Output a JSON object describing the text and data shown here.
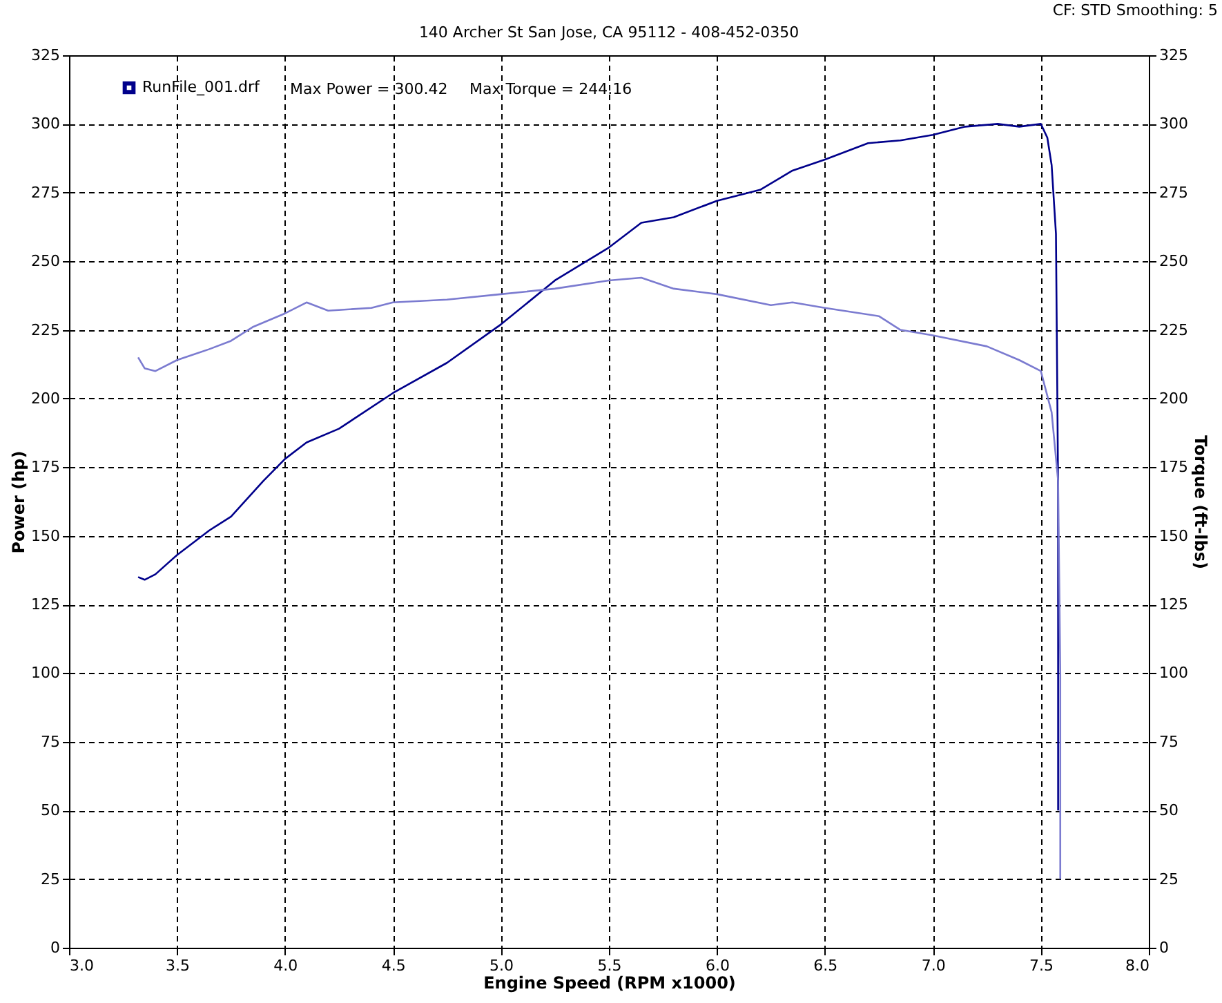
{
  "chart_data": {
    "type": "line",
    "title": "140 Archer St San Jose, CA 95112 - 408-452-0350",
    "xlabel": "Engine Speed (RPM x1000)",
    "ylabel": "Power (hp)",
    "y2label": "Torque (ft-lbs)",
    "annotations": [
      "Max Power = 300.42",
      "Max Torque = 244.16",
      "CF: STD  Smoothing: 5"
    ],
    "xlim": [
      3.0,
      8.0
    ],
    "xticks": [
      {
        "value": 3,
        "label": "3.0"
      },
      3.5,
      {
        "value": 4,
        "label": "4.0"
      },
      4.5,
      {
        "value": 5,
        "label": "5.0"
      },
      5.5,
      {
        "value": 6,
        "label": "6.0"
      },
      6.5,
      {
        "value": 7,
        "label": "7.0"
      },
      7.5,
      {
        "value": 8,
        "label": "8.0"
      }
    ],
    "ylim": [
      0,
      325
    ],
    "yticks": [
      0,
      25,
      50,
      75,
      100,
      125,
      150,
      175,
      200,
      225,
      250,
      275,
      300,
      325
    ],
    "y2lim": [
      0,
      325
    ],
    "y2ticks": [
      0,
      25,
      50,
      75,
      100,
      125,
      150,
      175,
      200,
      225,
      250,
      275,
      300,
      325
    ],
    "grid": true,
    "legend": "top left",
    "line_style": "solid",
    "series": [
      {
        "name": "RunFile_001.drf",
        "color": "#00008b",
        "x": [
          3.32,
          3.35,
          3.4,
          3.5,
          3.65,
          3.75,
          3.9,
          4.0,
          4.1,
          4.25,
          4.5,
          4.75,
          5.0,
          5.25,
          5.5,
          5.65,
          5.8,
          6.0,
          6.2,
          6.35,
          6.5,
          6.7,
          6.85,
          7.0,
          7.15,
          7.3,
          7.4,
          7.5,
          7.53,
          7.55,
          7.57,
          7.58,
          7.58,
          7.58
        ],
        "values": [
          135,
          134,
          136,
          143,
          152,
          157,
          170,
          178,
          184,
          189,
          202,
          213,
          227,
          243,
          255,
          264,
          266,
          272,
          276,
          283,
          287,
          293,
          294,
          296,
          299,
          300,
          299,
          300,
          295,
          285,
          260,
          167,
          100,
          50
        ]
      },
      {
        "color": "#7b7bd0",
        "axis": "y2",
        "x": [
          3.32,
          3.35,
          3.4,
          3.5,
          3.65,
          3.75,
          3.85,
          4.0,
          4.1,
          4.2,
          4.4,
          4.5,
          4.75,
          5.0,
          5.25,
          5.5,
          5.65,
          5.8,
          6.0,
          6.25,
          6.35,
          6.5,
          6.75,
          6.85,
          7.0,
          7.25,
          7.4,
          7.5,
          7.55,
          7.58,
          7.59,
          7.59
        ],
        "values": [
          215,
          211,
          210,
          214,
          218,
          221,
          226,
          231,
          235,
          232,
          233,
          235,
          236,
          238,
          240,
          243,
          244,
          240,
          238,
          234,
          235,
          233,
          230,
          225,
          223,
          219,
          214,
          210,
          195,
          170,
          100,
          25
        ]
      }
    ]
  }
}
